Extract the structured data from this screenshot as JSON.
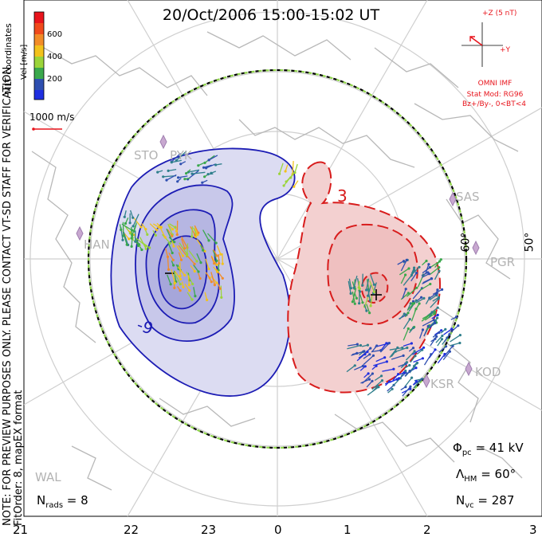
{
  "title": "20/Oct/2006  15:00-15:02 UT",
  "side_note": {
    "line1": "NOTE: FOR PREVIEW PURPOSES ONLY. PLEASE CONTACT VT-SD STAFF FOR VERIFICATION.",
    "line2": "FitOrder: 8, mapEX format"
  },
  "coords_label": "MLT coordinates",
  "velocity_scale": {
    "label": "Vel [m/s]",
    "ticks": [
      "600",
      "400",
      "200"
    ],
    "reference_vector": "1000 m/s",
    "colors": [
      "#e8141c",
      "#f28c28",
      "#f2c21c",
      "#9bd43a",
      "#3aa84c",
      "#2f7f8c",
      "#2e4fb0",
      "#1f2fe0"
    ]
  },
  "imf": {
    "bz_label": "+Z (5 nT)",
    "by_label": "+Y",
    "source": "OMNI IMF",
    "model": "Stat Mod: RG96",
    "condition": "Bz+/By-, 0<BT<4"
  },
  "stations": [
    "STO",
    "PYK",
    "HAN",
    "SAS",
    "PGR",
    "KOD",
    "KSR",
    "WAL"
  ],
  "latitude_labels": [
    "60°",
    "50°"
  ],
  "contour_labels": [
    "3",
    "-9"
  ],
  "mlt_labels": [
    "21",
    "22",
    "23",
    "0",
    "1",
    "2",
    "3"
  ],
  "stats": {
    "phi_pc": "41 kV",
    "lambda_hm": "60°",
    "n_vc": "287",
    "n_rads": "8"
  },
  "colors": {
    "positive_cell": "#f3d0d0",
    "negative_cell": "#c8c8ea",
    "positive_contour": "#d81c1c",
    "negative_contour": "#1c1cb4",
    "imf_red": "#e8141c",
    "coastline": "#b8b8b8",
    "grid": "#cfcfcf"
  }
}
